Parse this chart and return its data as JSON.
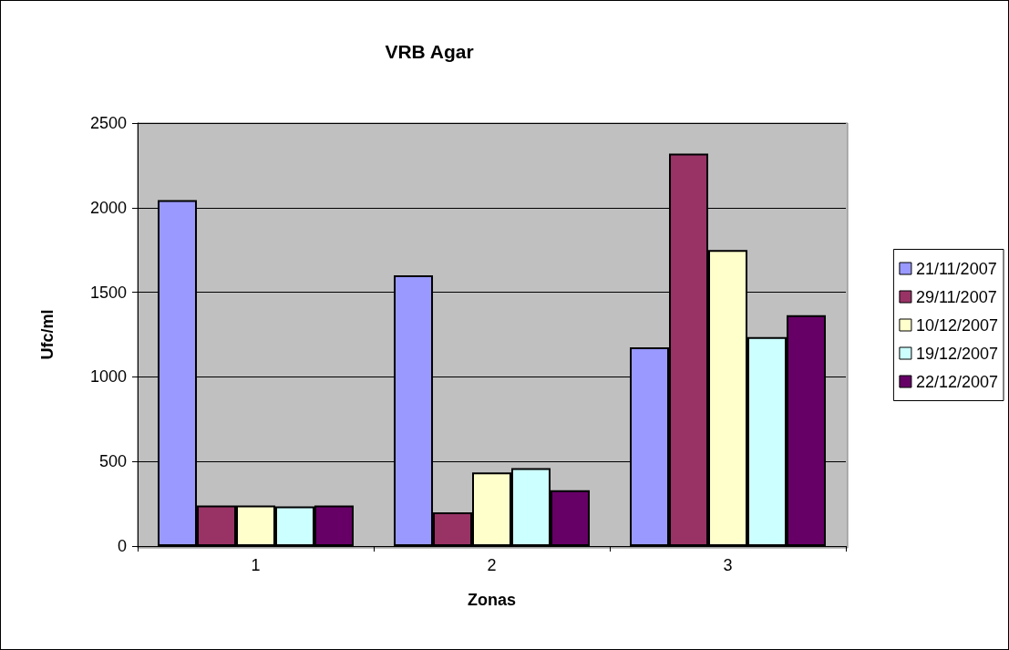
{
  "chart_data": {
    "type": "bar",
    "title": "VRB Agar",
    "xlabel": "Zonas",
    "ylabel": "Ufc/ml",
    "categories": [
      "1",
      "2",
      "3"
    ],
    "series": [
      {
        "name": "21/11/2007",
        "color": "#9999ff",
        "values": [
          2045,
          1600,
          1175
        ]
      },
      {
        "name": "29/11/2007",
        "color": "#993366",
        "values": [
          240,
          200,
          2320
        ]
      },
      {
        "name": "10/12/2007",
        "color": "#ffffcc",
        "values": [
          240,
          435,
          1750
        ]
      },
      {
        "name": "19/12/2007",
        "color": "#ccffff",
        "values": [
          235,
          460,
          1235
        ]
      },
      {
        "name": "22/12/2007",
        "color": "#660066",
        "values": [
          240,
          330,
          1365
        ]
      }
    ],
    "ylim": [
      0,
      2500
    ],
    "yticks": [
      0,
      500,
      1000,
      1500,
      2000,
      2500
    ],
    "grid": "y",
    "legend": "right"
  }
}
